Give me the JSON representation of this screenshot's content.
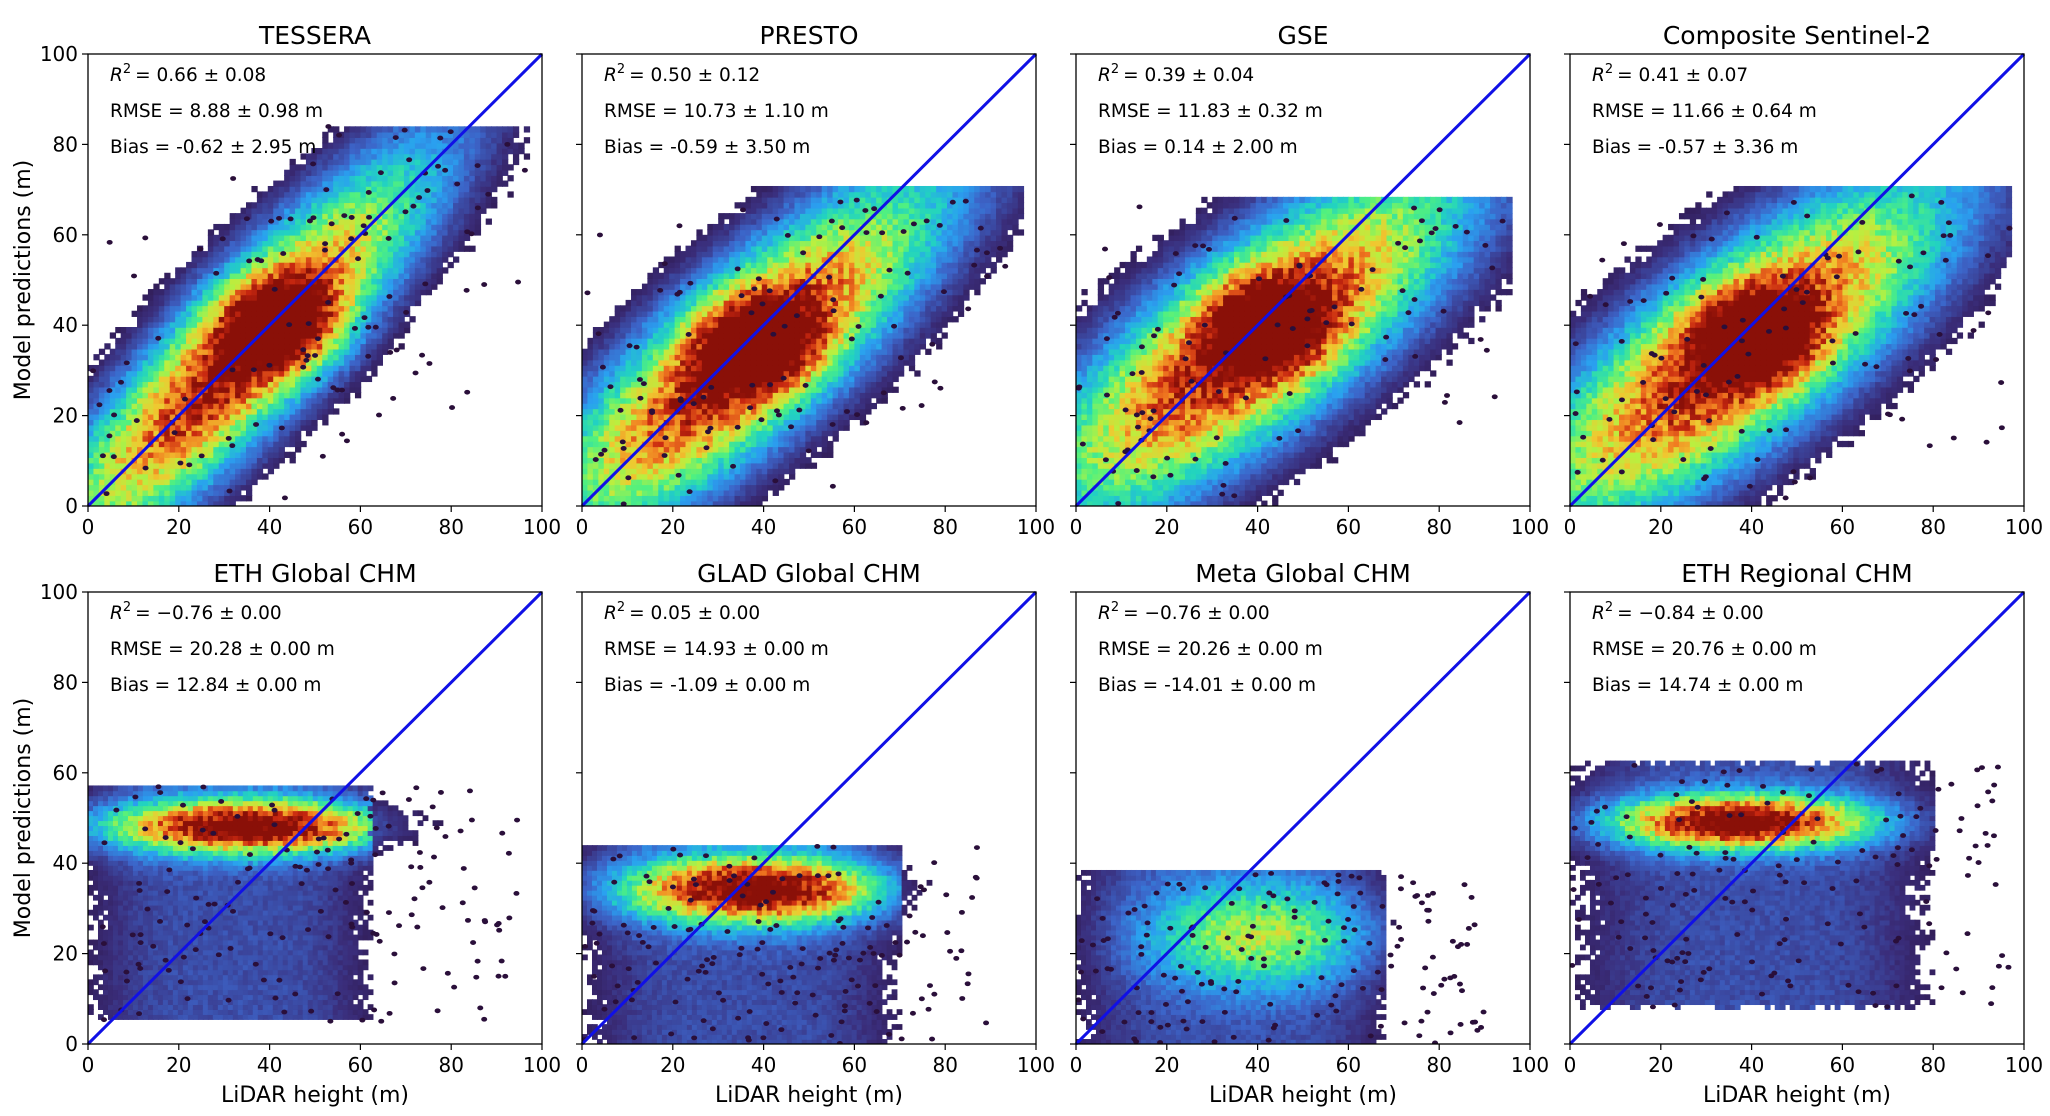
{
  "chart_data": [
    {
      "type": "hexbin-scatter",
      "title": "TESSERA",
      "xlabel": "",
      "ylabel": "Model predictions (m)",
      "xlim": [
        0,
        100
      ],
      "ylim": [
        0,
        100
      ],
      "xticks": [
        "0",
        "20",
        "40",
        "60",
        "80",
        "100"
      ],
      "yticks": [
        "0",
        "20",
        "40",
        "60",
        "80",
        "100"
      ],
      "reference_line": "y = x",
      "annotations": {
        "r2_label": "R",
        "r2_sup": "2",
        "r2_value": "= 0.66 ± 0.08",
        "rmse": "RMSE = 8.88 ± 0.98 m",
        "bias": "Bias = -0.62 ± 2.95 m"
      },
      "density": {
        "kind": "diag",
        "center": [
          33,
          33
        ],
        "slope": 0.93,
        "intercept": 2,
        "spread": 14,
        "spread_along": 18,
        "peak": [
          42,
          40
        ],
        "xmax": 97,
        "ymax": 84
      }
    },
    {
      "type": "hexbin-scatter",
      "title": "PRESTO",
      "xlabel": "",
      "ylabel": "",
      "xlim": [
        0,
        100
      ],
      "ylim": [
        0,
        100
      ],
      "xticks": [
        "0",
        "20",
        "40",
        "60",
        "80",
        "100"
      ],
      "yticks": [],
      "reference_line": "y = x",
      "annotations": {
        "r2_label": "R",
        "r2_sup": "2",
        "r2_value": "= 0.50 ± 0.12",
        "rmse": "RMSE = 10.73 ± 1.10 m",
        "bias": "Bias = -0.59 ± 3.50 m"
      },
      "density": {
        "kind": "diag",
        "center": [
          35,
          33
        ],
        "slope": 0.75,
        "intercept": 6,
        "spread": 15,
        "spread_along": 19,
        "peak": [
          38,
          36
        ],
        "xmax": 97,
        "ymax": 70
      }
    },
    {
      "type": "hexbin-scatter",
      "title": "GSE",
      "xlabel": "",
      "ylabel": "",
      "xlim": [
        0,
        100
      ],
      "ylim": [
        0,
        100
      ],
      "xticks": [
        "0",
        "20",
        "40",
        "60",
        "80",
        "100"
      ],
      "yticks": [],
      "reference_line": "y = x",
      "annotations": {
        "r2_label": "R",
        "r2_sup": "2",
        "r2_value": "= 0.39 ± 0.04",
        "rmse": "RMSE = 11.83 ± 0.32 m",
        "bias": "Bias = 0.14 ± 2.00 m"
      },
      "density": {
        "kind": "diag",
        "center": [
          38,
          36
        ],
        "slope": 0.65,
        "intercept": 11,
        "spread": 16,
        "spread_along": 20,
        "peak": [
          42,
          40
        ],
        "xmax": 95,
        "ymax": 68
      }
    },
    {
      "type": "hexbin-scatter",
      "title": "Composite Sentinel-2",
      "xlabel": "",
      "ylabel": "",
      "xlim": [
        0,
        100
      ],
      "ylim": [
        0,
        100
      ],
      "xticks": [
        "0",
        "20",
        "40",
        "60",
        "80",
        "100"
      ],
      "yticks": [],
      "reference_line": "y = x",
      "annotations": {
        "r2_label": "R",
        "r2_sup": "2",
        "r2_value": "= 0.41 ± 0.07",
        "rmse": "RMSE = 11.66 ± 0.64 m",
        "bias": "Bias = -0.57 ± 3.36 m"
      },
      "density": {
        "kind": "diag",
        "center": [
          36,
          34
        ],
        "slope": 0.65,
        "intercept": 10,
        "spread": 16,
        "spread_along": 20,
        "peak": [
          40,
          38
        ],
        "xmax": 97,
        "ymax": 70
      }
    },
    {
      "type": "hexbin-scatter",
      "title": "ETH Global CHM",
      "xlabel": "LiDAR height (m)",
      "ylabel": "Model predictions (m)",
      "xlim": [
        0,
        100
      ],
      "ylim": [
        0,
        100
      ],
      "xticks": [
        "0",
        "20",
        "40",
        "60",
        "80",
        "100"
      ],
      "yticks": [
        "0",
        "20",
        "40",
        "60",
        "80",
        "100"
      ],
      "reference_line": "y = x",
      "annotations": {
        "r2_label": "R",
        "r2_sup": "2",
        "r2_value": "= −0.76 ± 0.00",
        "rmse": "RMSE = 20.28 ± 0.00 m",
        "bias": "Bias = 12.84 ± 0.00 m"
      },
      "density": {
        "kind": "band",
        "band_y": [
          5,
          57
        ],
        "core_y": 48,
        "core_sd": 4,
        "xrange": [
          0,
          62
        ],
        "peak_x": [
          20,
          50
        ],
        "xmax": 98,
        "ymax": 58
      }
    },
    {
      "type": "hexbin-scatter",
      "title": "GLAD Global CHM",
      "xlabel": "LiDAR height (m)",
      "ylabel": "",
      "xlim": [
        0,
        100
      ],
      "ylim": [
        0,
        100
      ],
      "xticks": [
        "0",
        "20",
        "40",
        "60",
        "80",
        "100"
      ],
      "yticks": [],
      "reference_line": "y = x",
      "annotations": {
        "r2_label": "R",
        "r2_sup": "2",
        "r2_value": "= 0.05 ± 0.00",
        "rmse": "RMSE = 14.93 ± 0.00 m",
        "bias": "Bias = -1.09 ± 0.00 m"
      },
      "density": {
        "kind": "band",
        "band_y": [
          0,
          44
        ],
        "core_y": 34,
        "core_sd": 5,
        "xrange": [
          0,
          70
        ],
        "peak_x": [
          25,
          50
        ],
        "xmax": 90,
        "ymax": 44
      }
    },
    {
      "type": "hexbin-scatter",
      "title": "Meta Global CHM",
      "xlabel": "LiDAR height (m)",
      "ylabel": "",
      "xlim": [
        0,
        100
      ],
      "ylim": [
        0,
        100
      ],
      "xticks": [
        "0",
        "20",
        "40",
        "60",
        "80",
        "100"
      ],
      "yticks": [],
      "reference_line": "y = x",
      "annotations": {
        "r2_label": "R",
        "r2_sup": "2",
        "r2_value": "= −0.76 ± 0.00",
        "rmse": "RMSE = 20.26 ± 0.00 m",
        "bias": "Bias = -14.01 ± 0.00 m"
      },
      "density": {
        "kind": "blob",
        "band_y": [
          0,
          38
        ],
        "core_y": 24,
        "core_sd": 8,
        "xrange": [
          0,
          68
        ],
        "peak_x": [
          30,
          50
        ],
        "xmax": 90,
        "ymax": 40
      }
    },
    {
      "type": "hexbin-scatter",
      "title": "ETH Regional CHM",
      "xlabel": "LiDAR height (m)",
      "ylabel": "",
      "xlim": [
        0,
        100
      ],
      "ylim": [
        0,
        100
      ],
      "xticks": [
        "0",
        "20",
        "40",
        "60",
        "80",
        "100"
      ],
      "yticks": [],
      "reference_line": "y = x",
      "annotations": {
        "r2_label": "R",
        "r2_sup": "2",
        "r2_value": "= −0.84 ± 0.00",
        "rmse": "RMSE = 20.76 ± 0.00 m",
        "bias": "Bias = 14.74 ± 0.00 m"
      },
      "density": {
        "kind": "band",
        "band_y": [
          8,
          62
        ],
        "core_y": 49,
        "core_sd": 4,
        "xrange": [
          0,
          80
        ],
        "peak_x": [
          25,
          50
        ],
        "xmax": 97,
        "ymax": 67
      }
    }
  ],
  "colors": {
    "reference_line": "#1010e6",
    "colormap": [
      "#2a0f3a",
      "#3a2d7a",
      "#3c64c8",
      "#2aa0f0",
      "#22d3c0",
      "#50f080",
      "#b8f040",
      "#f0c830",
      "#f07820",
      "#c82810",
      "#8a1008"
    ]
  }
}
